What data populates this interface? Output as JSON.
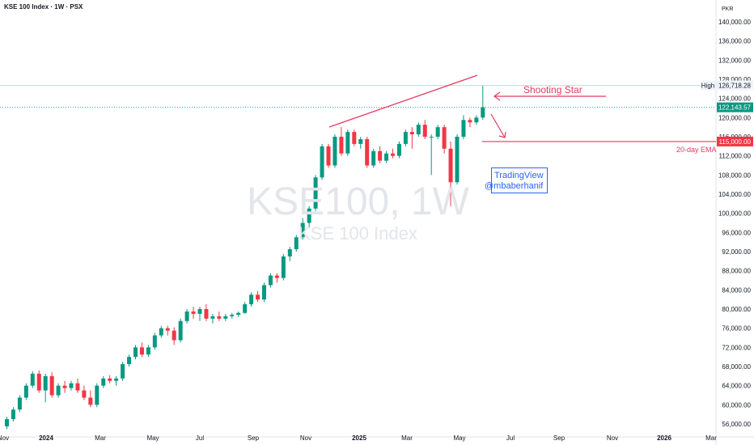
{
  "header": {
    "title": "KSE 100 Index · 1W · PSX",
    "currency": "PKR"
  },
  "watermark": {
    "symbol": "KSE100, 1W",
    "name": "KSE 100 Index"
  },
  "annotations": {
    "shooting_star": "Shooting Star",
    "ema": "20-day EMA",
    "tv_brand": "TradingView",
    "tv_user": "@mbaberhanif",
    "high_label": "High"
  },
  "badges": {
    "high_value": "126,718.28",
    "last_price": "122,143.57",
    "ema_level": "115,000.00"
  },
  "colors": {
    "up": "#089981",
    "down": "#f23645",
    "annotation": "#e5395d",
    "brand_blue": "#2962ff",
    "last_price_line": "#22ab94"
  },
  "chart_data": {
    "type": "candlestick",
    "timeframe": "1W",
    "symbol": "KSE 100 Index",
    "exchange": "PSX",
    "currency": "PKR",
    "ylim": [
      54500,
      143000
    ],
    "y_ticks": [
      56000,
      60000,
      64000,
      68000,
      72000,
      76000,
      80000,
      84000,
      88000,
      92000,
      96000,
      100000,
      104000,
      108000,
      112000,
      116000,
      120000,
      124000,
      128000,
      132000,
      136000,
      140000
    ],
    "y_tick_labels": [
      "56,000.00",
      "60,000.00",
      "64,000.00",
      "68,000.00",
      "72,000.00",
      "76,000.00",
      "80,000.00",
      "84,000.00",
      "88,000.00",
      "92,000.00",
      "96,000.00",
      "100,000.00",
      "104,000.00",
      "108,000.00",
      "112,000.00",
      "116,000.00",
      "120,000.00",
      "124,000.00",
      "128,000.00",
      "132,000.00",
      "136,000.00",
      "140,000.00"
    ],
    "x_tick_labels": [
      "Nov",
      "2024",
      "Mar",
      "May",
      "Jul",
      "Sep",
      "Nov",
      "2025",
      "Mar",
      "May",
      "Jul",
      "Sep",
      "Nov",
      "2026",
      "Mar"
    ],
    "last_price": 122143.57,
    "period_high": 126718.28,
    "ema_20": 115000,
    "candles": [
      [
        55500,
        57500,
        54900,
        57000
      ],
      [
        57000,
        59500,
        56500,
        59000
      ],
      [
        59000,
        62000,
        58500,
        61500
      ],
      [
        61500,
        64500,
        61000,
        64000
      ],
      [
        64000,
        67000,
        63500,
        66500
      ],
      [
        66500,
        67200,
        62500,
        63000
      ],
      [
        63000,
        66500,
        60500,
        66000
      ],
      [
        66000,
        66800,
        61500,
        62000
      ],
      [
        62000,
        64500,
        61500,
        64000
      ],
      [
        64000,
        65000,
        62500,
        63500
      ],
      [
        63500,
        65000,
        63000,
        64500
      ],
      [
        64500,
        65500,
        62500,
        63000
      ],
      [
        63000,
        64000,
        61000,
        61500
      ],
      [
        61500,
        63000,
        59500,
        60000
      ],
      [
        60000,
        64500,
        59500,
        64000
      ],
      [
        64000,
        66000,
        63500,
        65500
      ],
      [
        65500,
        66200,
        64500,
        65000
      ],
      [
        65000,
        66000,
        64000,
        65500
      ],
      [
        65500,
        69000,
        65000,
        68500
      ],
      [
        68500,
        70500,
        68000,
        70000
      ],
      [
        70000,
        72500,
        69500,
        72000
      ],
      [
        72000,
        73000,
        70000,
        70500
      ],
      [
        70500,
        72500,
        70000,
        72000
      ],
      [
        72000,
        75000,
        71500,
        74500
      ],
      [
        74500,
        76500,
        74000,
        76000
      ],
      [
        76000,
        76500,
        74500,
        75500
      ],
      [
        75500,
        76200,
        72500,
        73500
      ],
      [
        73500,
        78000,
        73000,
        77500
      ],
      [
        77500,
        80000,
        77000,
        79500
      ],
      [
        79500,
        80500,
        78000,
        79000
      ],
      [
        79000,
        80500,
        77500,
        80000
      ],
      [
        80000,
        81000,
        77500,
        78000
      ],
      [
        78000,
        79000,
        77000,
        78500
      ],
      [
        78500,
        79500,
        77500,
        78000
      ],
      [
        78000,
        79000,
        77500,
        78500
      ],
      [
        78500,
        79200,
        78000,
        78800
      ],
      [
        78800,
        79500,
        78300,
        79200
      ],
      [
        79200,
        81500,
        79000,
        81000
      ],
      [
        81000,
        83500,
        80500,
        83000
      ],
      [
        83000,
        83800,
        81500,
        82000
      ],
      [
        82000,
        85500,
        81500,
        85000
      ],
      [
        85000,
        87500,
        84500,
        87000
      ],
      [
        87000,
        87500,
        85500,
        86500
      ],
      [
        86500,
        91500,
        86000,
        91000
      ],
      [
        91000,
        93000,
        90000,
        92500
      ],
      [
        92500,
        95500,
        92000,
        95000
      ],
      [
        95000,
        99000,
        94500,
        98000
      ],
      [
        98000,
        101500,
        97000,
        101000
      ],
      [
        101000,
        108000,
        100500,
        107500
      ],
      [
        107500,
        114500,
        107000,
        114000
      ],
      [
        114000,
        114500,
        109500,
        110000
      ],
      [
        110000,
        116500,
        109500,
        116000
      ],
      [
        116000,
        118000,
        112000,
        112500
      ],
      [
        112500,
        117500,
        112000,
        117000
      ],
      [
        117000,
        117500,
        114000,
        114500
      ],
      [
        114500,
        116000,
        113500,
        115500
      ],
      [
        115500,
        116000,
        109500,
        110000
      ],
      [
        110000,
        113500,
        109500,
        113000
      ],
      [
        113000,
        114000,
        110500,
        111000
      ],
      [
        111000,
        113000,
        110500,
        112500
      ],
      [
        112500,
        113500,
        111500,
        112000
      ],
      [
        112000,
        115000,
        111500,
        114500
      ],
      [
        114500,
        117500,
        114000,
        117000
      ],
      [
        117000,
        118000,
        113500,
        116500
      ],
      [
        116500,
        119000,
        116000,
        118500
      ],
      [
        118500,
        119500,
        115500,
        116000
      ],
      [
        116000,
        116500,
        108000,
        116000
      ],
      [
        116000,
        118500,
        115500,
        118000
      ],
      [
        118000,
        118500,
        112500,
        113500
      ],
      [
        113500,
        115000,
        101500,
        106500
      ],
      [
        106500,
        116500,
        106000,
        116000
      ],
      [
        116000,
        120500,
        115500,
        119500
      ],
      [
        119500,
        120000,
        118000,
        119000
      ],
      [
        119000,
        120500,
        118500,
        120000
      ],
      [
        120000,
        126718.28,
        119500,
        122143.57
      ]
    ]
  }
}
